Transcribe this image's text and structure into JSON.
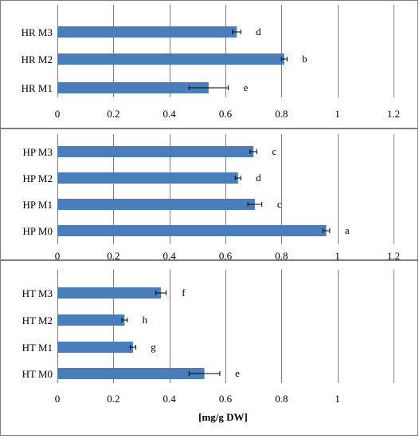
{
  "chart_data": [
    {
      "type": "bar",
      "orientation": "horizontal",
      "categories": [
        "HR M3",
        "HR M2",
        "HR M1"
      ],
      "values": [
        0.64,
        0.81,
        0.54
      ],
      "errors": [
        0.015,
        0.01,
        0.07
      ],
      "significance": [
        "d",
        "b",
        "e"
      ],
      "xlim": [
        0,
        1.2
      ],
      "xticks": [
        "0",
        "0.2",
        "0.4",
        "0.6",
        "0.8",
        "1",
        "1.2"
      ],
      "grid": true,
      "xlabel": ""
    },
    {
      "type": "bar",
      "orientation": "horizontal",
      "categories": [
        "HP M3",
        "HP M2",
        "HP M1",
        "HP M0"
      ],
      "values": [
        0.7,
        0.645,
        0.705,
        0.96
      ],
      "errors": [
        0.012,
        0.01,
        0.025,
        0.012
      ],
      "significance": [
        "c",
        "d",
        "c",
        "a"
      ],
      "xlim": [
        0,
        1.2
      ],
      "xticks": [
        "0",
        "0.2",
        "0.4",
        "0.6",
        "0.8",
        "1",
        "1.2"
      ],
      "grid": true,
      "xlabel": ""
    },
    {
      "type": "bar",
      "orientation": "horizontal",
      "categories": [
        "HT M3",
        "HT M2",
        "HT M1",
        "HT M0"
      ],
      "values": [
        0.37,
        0.24,
        0.27,
        0.525
      ],
      "errors": [
        0.018,
        0.01,
        0.01,
        0.055
      ],
      "significance": [
        "f",
        "h",
        "g",
        "e"
      ],
      "xlim": [
        0,
        1.2
      ],
      "xticks": [
        "0",
        "0.2",
        "0.4",
        "0.6",
        "0.8",
        "1"
      ],
      "grid": true,
      "xlabel": "[mg/g DW]"
    }
  ],
  "colors": {
    "bar": "#4a7ebb",
    "grid": "#7f7f7f",
    "frame": "#7f7f7f",
    "error_bar": "#000000"
  }
}
